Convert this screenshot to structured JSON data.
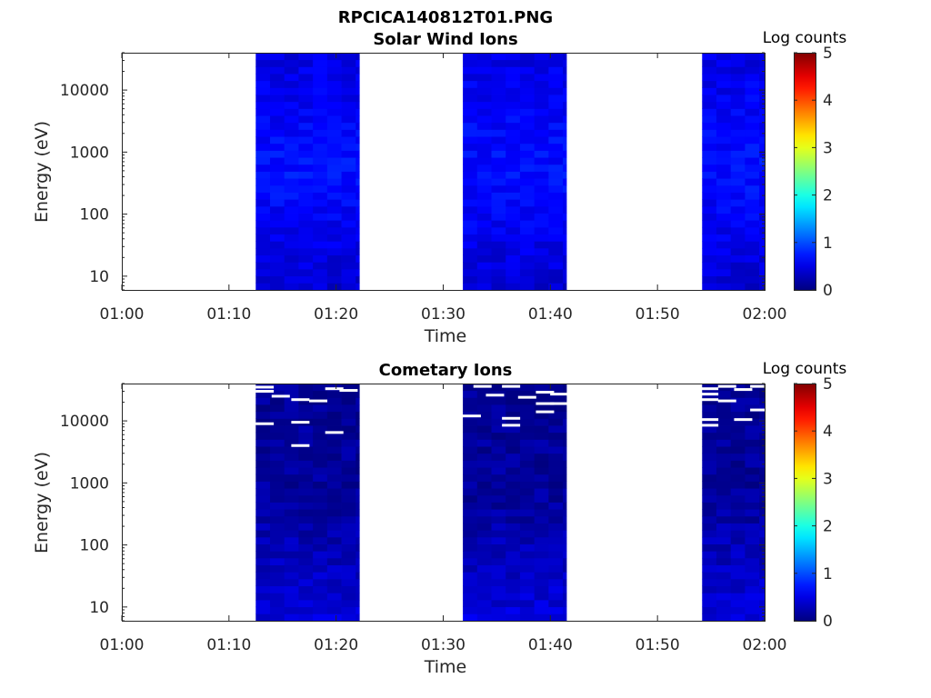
{
  "figure": {
    "title": "RPCICA140812T01.PNG"
  },
  "colormap": "jet",
  "chart_data": [
    {
      "type": "heatmap",
      "title": "Solar Wind Ions",
      "xlabel": "Time",
      "ylabel": "Energy (eV)",
      "x_ticks": [
        "01:00",
        "01:10",
        "01:20",
        "01:30",
        "01:40",
        "01:50",
        "02:00"
      ],
      "xlim": [
        "01:00",
        "02:00"
      ],
      "y_scale": "log",
      "y_ticks": [
        "10",
        "100",
        "1000",
        "10000"
      ],
      "ylim": [
        6,
        40000
      ],
      "colorbar": {
        "label": "Log counts",
        "range": [
          0,
          5
        ],
        "ticks": [
          "0",
          "1",
          "2",
          "3",
          "4",
          "5"
        ]
      },
      "data_intervals": [
        {
          "start": "01:12:30",
          "end": "01:22:10"
        },
        {
          "start": "01:31:50",
          "end": "01:41:30"
        },
        {
          "start": "01:54:10",
          "end": "02:00:30"
        }
      ],
      "typical_log_counts": {
        "low_energy": 0.4,
        "mid_energy": 0.7,
        "high_energy": 0.5
      },
      "saturated_cells": []
    },
    {
      "type": "heatmap",
      "title": "Cometary Ions",
      "xlabel": "Time",
      "ylabel": "Energy (eV)",
      "x_ticks": [
        "01:00",
        "01:10",
        "01:20",
        "01:30",
        "01:40",
        "01:50",
        "02:00"
      ],
      "xlim": [
        "01:00",
        "02:00"
      ],
      "y_scale": "log",
      "y_ticks": [
        "10",
        "100",
        "1000",
        "10000"
      ],
      "ylim": [
        6,
        40000
      ],
      "colorbar": {
        "label": "Log counts",
        "range": [
          0,
          5
        ],
        "ticks": [
          "0",
          "1",
          "2",
          "3",
          "4",
          "5"
        ]
      },
      "data_intervals": [
        {
          "start": "01:12:30",
          "end": "01:22:10"
        },
        {
          "start": "01:31:50",
          "end": "01:41:30"
        },
        {
          "start": "01:54:10",
          "end": "02:00:30"
        }
      ],
      "typical_log_counts": {
        "low_energy": 0.45,
        "mid_energy": 0.15,
        "high_energy": 0.1
      },
      "saturated_cells": [
        {
          "time": "01:13:20",
          "energy": 35000
        },
        {
          "time": "01:13:20",
          "energy": 30000
        },
        {
          "time": "01:13:20",
          "energy": 9000
        },
        {
          "time": "01:14:50",
          "energy": 25000
        },
        {
          "time": "01:16:40",
          "energy": 22000
        },
        {
          "time": "01:16:40",
          "energy": 9500
        },
        {
          "time": "01:16:40",
          "energy": 4000
        },
        {
          "time": "01:18:20",
          "energy": 21000
        },
        {
          "time": "01:19:50",
          "energy": 33000
        },
        {
          "time": "01:19:50",
          "energy": 6500
        },
        {
          "time": "01:21:10",
          "energy": 31000
        },
        {
          "time": "01:32:40",
          "energy": 12000
        },
        {
          "time": "01:33:40",
          "energy": 36000
        },
        {
          "time": "01:34:50",
          "energy": 26000
        },
        {
          "time": "01:36:20",
          "energy": 36000
        },
        {
          "time": "01:36:20",
          "energy": 11000
        },
        {
          "time": "01:36:20",
          "energy": 8500
        },
        {
          "time": "01:37:50",
          "energy": 24000
        },
        {
          "time": "01:39:30",
          "energy": 29000
        },
        {
          "time": "01:39:30",
          "energy": 19000
        },
        {
          "time": "01:39:30",
          "energy": 14000
        },
        {
          "time": "01:40:50",
          "energy": 27000
        },
        {
          "time": "01:40:50",
          "energy": 19000
        },
        {
          "time": "01:54:50",
          "energy": 33000
        },
        {
          "time": "01:54:50",
          "energy": 27000
        },
        {
          "time": "01:54:50",
          "energy": 22000
        },
        {
          "time": "01:54:50",
          "energy": 10500
        },
        {
          "time": "01:54:50",
          "energy": 8500
        },
        {
          "time": "01:56:30",
          "energy": 36000
        },
        {
          "time": "01:56:30",
          "energy": 21000
        },
        {
          "time": "01:58:00",
          "energy": 32000
        },
        {
          "time": "01:58:00",
          "energy": 10500
        },
        {
          "time": "01:59:30",
          "energy": 15000
        },
        {
          "time": "01:59:30",
          "energy": 36000
        }
      ]
    }
  ]
}
